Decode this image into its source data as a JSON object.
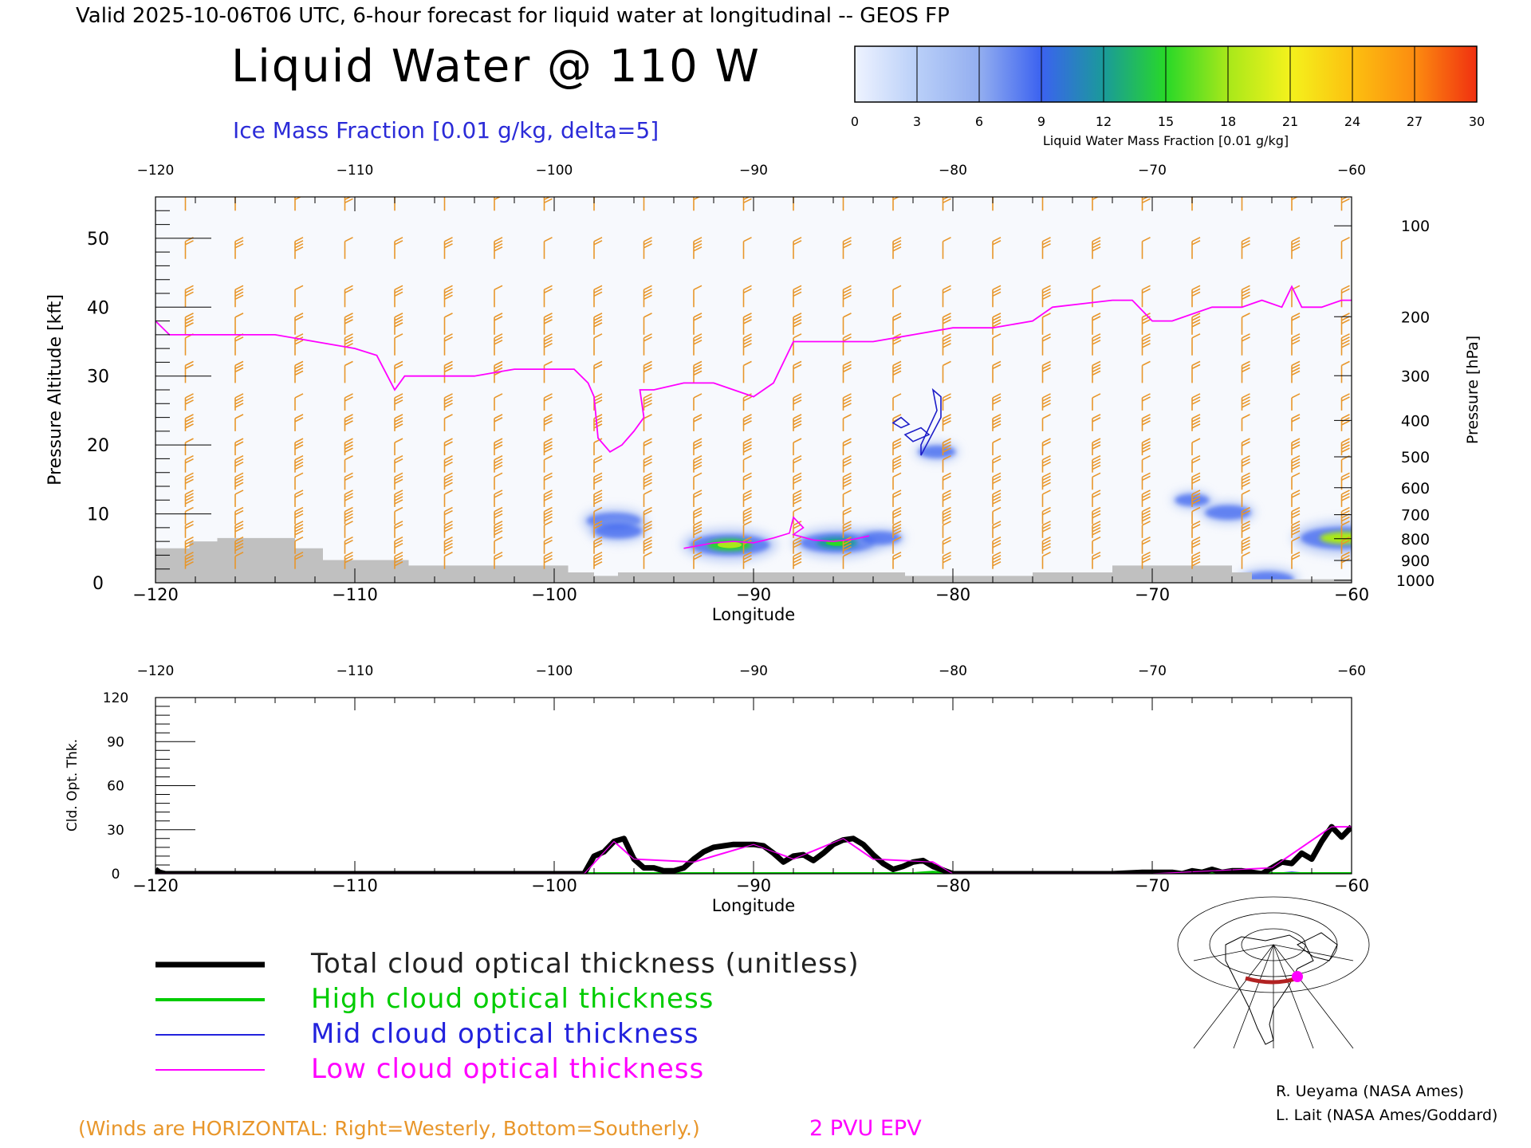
{
  "header": {
    "valid_line": "Valid 2025-10-06T06 UTC, 6-hour forecast for liquid water at longitudinal -- GEOS FP",
    "main_title": "Liquid Water @ 110 W",
    "ice_note": "Ice Mass Fraction [0.01 g/kg, delta=5]"
  },
  "colorbar": {
    "ticks": [
      "0",
      "3",
      "6",
      "9",
      "12",
      "15",
      "18",
      "21",
      "24",
      "27",
      "30"
    ],
    "label": "Liquid Water Mass Fraction [0.01 g/kg]",
    "colors": [
      "#eef3ff",
      "#b9cff8",
      "#93aef0",
      "#3b62f0",
      "#1a9a9a",
      "#28d828",
      "#a8e81a",
      "#f4f21c",
      "#fcc010",
      "#fc8c10"
    ],
    "end_color": "#f03010"
  },
  "chart_data": [
    {
      "type": "heatmap",
      "title": "Liquid Water @ 110 W",
      "xlabel": "Longitude",
      "ylabel": "Pressure Altitude [kft]",
      "y2label": "Pressure [hPa]",
      "xlim": [
        -120,
        -60
      ],
      "ylim": [
        0,
        56
      ],
      "x_ticks": [
        "-120",
        "-110",
        "-100",
        "-90",
        "-80",
        "-70",
        "-60"
      ],
      "top_x_ticks": [
        "-120",
        "-110",
        "-100",
        "-90",
        "-80",
        "-70",
        "-60"
      ],
      "y_ticks": [
        "0",
        "10",
        "20",
        "30",
        "40",
        "50"
      ],
      "pressure_ticks": [
        "100",
        "200",
        "300",
        "400",
        "500",
        "600",
        "700",
        "800",
        "900",
        "1000"
      ],
      "pressure_tick_values": [
        100,
        200,
        300,
        400,
        500,
        600,
        700,
        800,
        900,
        1000
      ],
      "liquid_water_blobs": [
        {
          "lon": -91.2,
          "alt": 5.5,
          "value": 18
        },
        {
          "lon": -85.8,
          "alt": 5.8,
          "value": 16
        },
        {
          "lon": -97.0,
          "alt": 9.0,
          "value": 9
        },
        {
          "lon": -96.8,
          "alt": 7.5,
          "value": 7
        },
        {
          "lon": -80.8,
          "alt": 19.0,
          "value": 3
        },
        {
          "lon": -83.6,
          "alt": 6.5,
          "value": 4
        },
        {
          "lon": -66.2,
          "alt": 10.2,
          "value": 6
        },
        {
          "lon": -68.0,
          "alt": 12.0,
          "value": 2
        },
        {
          "lon": -60.4,
          "alt": 6.5,
          "value": 20
        },
        {
          "lon": -64.2,
          "alt": 0.5,
          "value": 8
        }
      ],
      "ice_contours": [
        {
          "name": "ice-contour-1",
          "points": [
            [
              -81.6,
              18.5
            ],
            [
              -80.6,
              24
            ],
            [
              -80.6,
              27
            ],
            [
              -81.0,
              28
            ],
            [
              -80.8,
              25
            ],
            [
              -81.6,
              20
            ]
          ]
        },
        {
          "name": "ice-contour-2",
          "points": [
            [
              -82.6,
              24
            ],
            [
              -82.2,
              23
            ],
            [
              -82.6,
              22.5
            ],
            [
              -83.0,
              23.2
            ]
          ]
        },
        {
          "name": "ice-contour-3",
          "points": [
            [
              -82.0,
              20.5
            ],
            [
              -81.2,
              21.5
            ],
            [
              -81.6,
              22.5
            ],
            [
              -82.4,
              21.5
            ]
          ]
        }
      ],
      "epv_2pvu": {
        "name": "2 PVU EPV",
        "color": "#ff00ff",
        "x": [
          -120,
          -119.3,
          -118.5,
          -116,
          -114,
          -112,
          -110,
          -108.9,
          -108,
          -107.5,
          -106,
          -104,
          -102,
          -100,
          -99,
          -98.3,
          -98,
          -97.8,
          -97.2,
          -96.6,
          -96,
          -95.5,
          -95.7,
          -95,
          -93.5,
          -92,
          -91,
          -90,
          -89,
          -88,
          -87.5,
          -86,
          -84,
          -82,
          -80,
          -78,
          -76,
          -75,
          -72,
          -71,
          -70,
          -69,
          -67,
          -65.5,
          -64.5,
          -63.5,
          -63,
          -62.5,
          -61.5,
          -60.5,
          -60
        ],
        "y": [
          38,
          36,
          36,
          36,
          36,
          35,
          34,
          33,
          28,
          30,
          30,
          30,
          31,
          31,
          31,
          29,
          27,
          21,
          19,
          20,
          22,
          24,
          28,
          28,
          29,
          29,
          28,
          27,
          29,
          35,
          35,
          35,
          35,
          36,
          37,
          37,
          38,
          40,
          41,
          41,
          38,
          38,
          40,
          40,
          41,
          40,
          43,
          40,
          40,
          41,
          41
        ]
      },
      "low_cloud_contour": {
        "x": [
          -93.5,
          -92,
          -91,
          -90,
          -89,
          -88.2,
          -88,
          -87.5,
          -88,
          -87,
          -86,
          -85,
          -84.2
        ],
        "y": [
          5,
          5.8,
          6,
          5.8,
          6.5,
          7.2,
          9.5,
          8,
          7,
          6.2,
          6,
          6.3,
          6.8
        ]
      },
      "surface_terrain_kft": {
        "x": [
          -120,
          -118.3,
          -116.9,
          -114,
          -113,
          -111.6,
          -108,
          -107.3,
          -101,
          -99.3,
          -98,
          -96.8,
          -84,
          -82.4,
          -76,
          -72,
          -68,
          -66,
          -65,
          -60
        ],
        "y": [
          5,
          6,
          6.5,
          6.5,
          5,
          3.3,
          3.3,
          2.5,
          2.5,
          1.5,
          1,
          1.5,
          1.5,
          1,
          1.5,
          2.5,
          2.5,
          1.5,
          0.5,
          0.5
        ]
      },
      "wind_barb_columns_lon": [
        -118.5,
        -116,
        -113,
        -110.5,
        -108,
        -105.5,
        -103,
        -100.5,
        -98,
        -95.5,
        -93,
        -90.5,
        -88,
        -85.5,
        -83,
        -80.5,
        -78,
        -75.5,
        -73,
        -70.5,
        -68,
        -65.5,
        -63,
        -60.5
      ],
      "wind_barb_levels_kft": [
        54,
        47,
        40,
        36,
        33,
        29,
        25,
        22,
        18.5,
        16,
        13.5,
        11,
        8.5,
        6.5,
        4.2,
        2
      ]
    },
    {
      "type": "line",
      "ylabel": "Cld. Opt. Thk.",
      "xlabel": "Longitude",
      "xlim": [
        -120,
        -60
      ],
      "ylim": [
        0,
        120
      ],
      "x_ticks": [
        "-120",
        "-110",
        "-100",
        "-90",
        "-80",
        "-70",
        "-60"
      ],
      "top_x_ticks": [
        "-120",
        "-110",
        "-100",
        "-90",
        "-80",
        "-70",
        "-60"
      ],
      "y_ticks": [
        "0",
        "30",
        "60",
        "90",
        "120"
      ],
      "series": [
        {
          "name": "Total cloud optical thickness (unitless)",
          "color": "#000000",
          "x": [
            -120,
            -119.8,
            -119.5,
            -110,
            -100,
            -98.5,
            -98,
            -97.5,
            -97,
            -96.5,
            -96,
            -95.5,
            -95,
            -94.5,
            -94,
            -93.5,
            -93,
            -92.5,
            -92,
            -91.5,
            -91,
            -90.5,
            -90,
            -89.5,
            -89,
            -88.5,
            -88,
            -87.5,
            -87,
            -86.5,
            -86,
            -85.5,
            -85,
            -84.5,
            -84,
            -83.5,
            -83,
            -82.5,
            -82,
            -81.5,
            -81,
            -80,
            -75,
            -72,
            -70.5,
            -69,
            -68.5,
            -68,
            -67.5,
            -67,
            -66.5,
            -66,
            -65.5,
            -65,
            -64.5,
            -64,
            -63.5,
            -63,
            -62.5,
            -62,
            -61.5,
            -61,
            -60.5,
            -60
          ],
          "y": [
            3,
            1,
            0,
            0,
            0,
            0,
            12,
            15,
            22,
            24,
            10,
            4,
            4,
            2,
            2,
            4,
            10,
            15,
            18,
            19,
            20,
            20,
            20,
            19,
            14,
            8,
            12,
            13,
            9,
            14,
            20,
            23,
            24,
            20,
            13,
            7,
            3,
            5,
            8,
            9,
            5,
            0,
            0,
            0,
            1,
            1,
            0,
            2,
            1,
            3,
            1,
            2,
            2,
            1,
            0,
            4,
            8,
            7,
            14,
            10,
            22,
            32,
            25,
            32
          ]
        },
        {
          "name": "High cloud optical thickness",
          "color": "#00cc00",
          "x": [
            -120,
            -100,
            -97,
            -93,
            -90,
            -85,
            -82,
            -81,
            -80,
            -70,
            -64,
            -60
          ],
          "y": [
            0,
            0,
            0,
            0,
            0,
            0,
            0,
            1,
            0,
            0,
            0,
            0
          ]
        },
        {
          "name": "Mid cloud optical thickness",
          "color": "#2222dd",
          "x": [
            -120,
            -100,
            -97,
            -85,
            -82,
            -81,
            -80,
            -70,
            -64,
            -63,
            -62,
            -60
          ],
          "y": [
            0,
            0,
            0,
            0,
            0,
            1,
            0,
            0,
            0,
            1,
            0,
            0
          ]
        },
        {
          "name": "Low cloud optical thickness",
          "color": "#ff00ff",
          "x": [
            -120,
            -100,
            -98.5,
            -97,
            -96,
            -93,
            -90,
            -88,
            -85.5,
            -84,
            -81,
            -80,
            -70,
            -64,
            -61,
            -60
          ],
          "y": [
            0,
            0,
            0,
            22,
            10,
            8,
            20,
            10,
            24,
            10,
            8,
            0,
            0,
            4,
            32,
            32
          ]
        }
      ]
    }
  ],
  "legend": {
    "items": [
      {
        "label": "Total cloud optical thickness (unitless)",
        "color": "#000000"
      },
      {
        "label": "High cloud optical thickness",
        "color": "#00cc00"
      },
      {
        "label": "Mid cloud optical thickness",
        "color": "#2222dd"
      },
      {
        "label": "Low cloud optical thickness",
        "color": "#ff00ff"
      }
    ]
  },
  "footer": {
    "winds_note": "(Winds are HORIZONTAL: Right=Westerly, Bottom=Southerly.)",
    "epv_label": "2 PVU EPV",
    "credit1": "R. Ueyama (NASA Ames)",
    "credit2": "L. Lait (NASA Ames/Goddard)",
    "winds_color": "#e8962a",
    "epv_color": "#ff00ff"
  }
}
